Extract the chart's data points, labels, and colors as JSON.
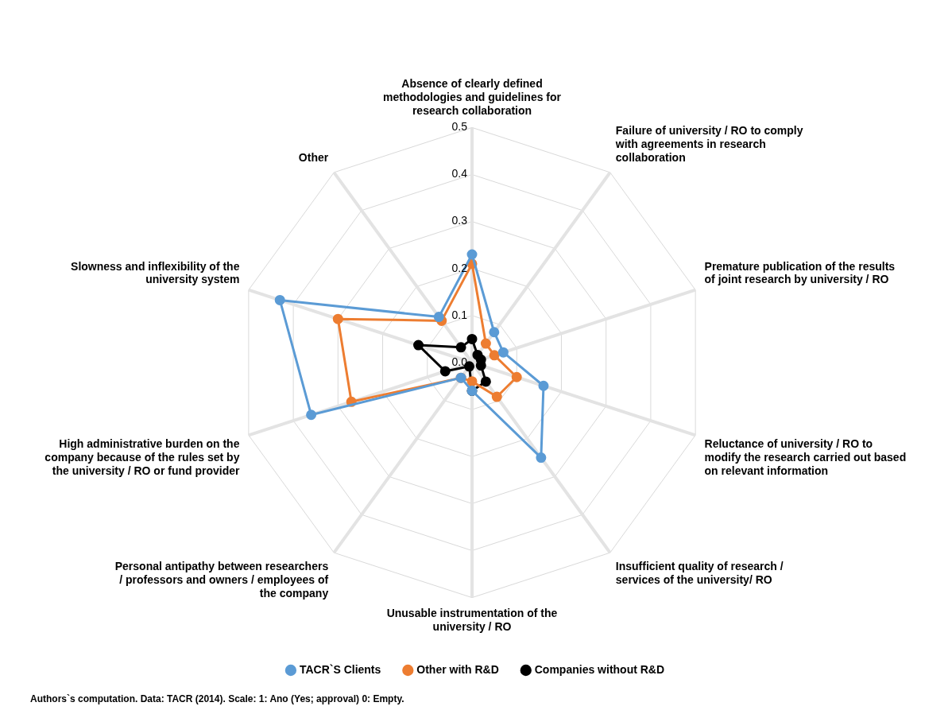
{
  "chart_data": {
    "type": "radar",
    "categories": [
      "Absence of clearly defined methodologies and guidelines for research collaboration",
      "Failure of university / RO to comply with agreements in research collaboration",
      "Premature publication of the results of joint research by university / RO",
      "Reluctance of university / RO to modify the research carried out based on relevant information",
      "Insufficient quality of research / services of the university/ RO",
      "Unusable instrumentation of the university / RO",
      "Personal antipathy between researchers / professors and owners / employees of the company",
      "High administrative burden on the company because of the rules set by the university / RO or fund provider",
      "Slowness and inflexibility of the university system",
      "Other"
    ],
    "series": [
      {
        "name": "TACR`S Clients",
        "color": "#5b9bd5",
        "values": [
          0.23,
          0.08,
          0.07,
          0.16,
          0.25,
          0.06,
          0.04,
          0.36,
          0.43,
          0.12
        ]
      },
      {
        "name": "Other with R&D",
        "color": "#ed7d31",
        "values": [
          0.21,
          0.05,
          0.05,
          0.1,
          0.09,
          0.04,
          0.04,
          0.27,
          0.3,
          0.11
        ]
      },
      {
        "name": "Companies without R&D",
        "color": "#000000",
        "values": [
          0.05,
          0.02,
          0.02,
          0.02,
          0.05,
          0.06,
          0.01,
          0.06,
          0.12,
          0.04
        ]
      }
    ],
    "ylim": [
      0,
      0.5
    ],
    "yticks": [
      {
        "value": 0,
        "label": "0.0"
      },
      {
        "value": 0.1,
        "label": "0.1"
      },
      {
        "value": 0.2,
        "label": "0.2"
      },
      {
        "value": 0.3,
        "label": "0.3"
      },
      {
        "value": 0.4,
        "label": "0.4"
      },
      {
        "value": 0.5,
        "label": "0.5"
      }
    ],
    "grid": true,
    "legend": "bottom",
    "marker": "circle",
    "annotations": [
      "Authors`s computation. Data: TACR (2014).  Scale: 1: Ano (Yes; approval) 0: Empty."
    ]
  }
}
